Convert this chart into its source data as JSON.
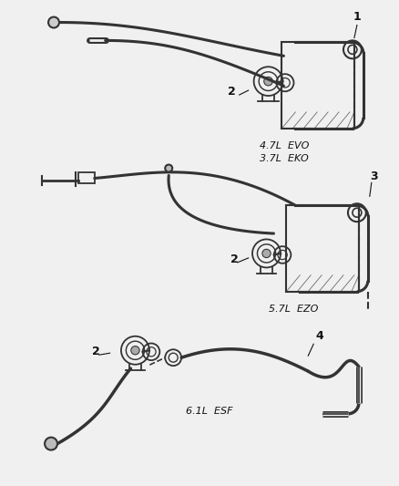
{
  "background_color": "#f0f0f0",
  "line_color": "#333333",
  "text_color": "#111111",
  "fig_width": 4.38,
  "fig_height": 5.33,
  "dpi": 100,
  "border_color": "#cccccc",
  "section1_label1": "4.7L  EVO",
  "section1_label2": "3.7L  EKO",
  "section2_label": "5.7L  EZO",
  "section3_label": "6.1L  ESF",
  "num1": "1",
  "num2": "2",
  "num3": "3",
  "num4": "4"
}
